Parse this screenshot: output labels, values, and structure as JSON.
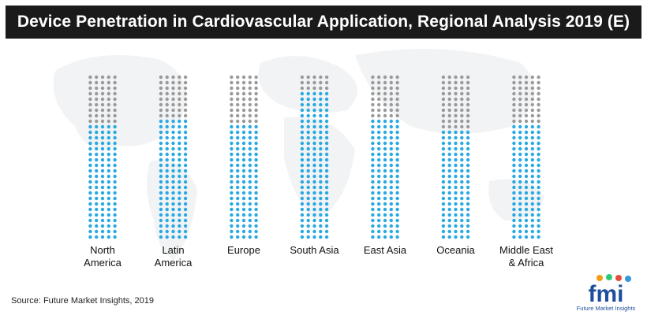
{
  "title": "Device Penetration in Cardiovascular Application, Regional Analysis 2019 (E)",
  "source": "Source: Future Market Insights, 2019",
  "logo": {
    "text": "fmi",
    "tagline": "Future Market Insights"
  },
  "colors": {
    "filled": "#29a9e1",
    "empty": "#9a9a9a",
    "title_bg": "#1a1a1a",
    "map": "#f1f3f5"
  },
  "chart_data": {
    "type": "bar",
    "style": "dot-matrix",
    "title": "Device Penetration in Cardiovascular Application, Regional Analysis 2019 (E)",
    "categories": [
      [
        "North",
        "America"
      ],
      [
        "Latin",
        "America"
      ],
      [
        "Europe"
      ],
      [
        "South Asia"
      ],
      [
        "East Asia"
      ],
      [
        "Oceania"
      ],
      [
        "Middle East",
        "& Africa"
      ]
    ],
    "dot_rows": 30,
    "dot_cols": 5,
    "series": [
      {
        "values": [
          21,
          22,
          21,
          27,
          22,
          20,
          21
        ]
      }
    ],
    "grid": false,
    "legend": "none"
  }
}
